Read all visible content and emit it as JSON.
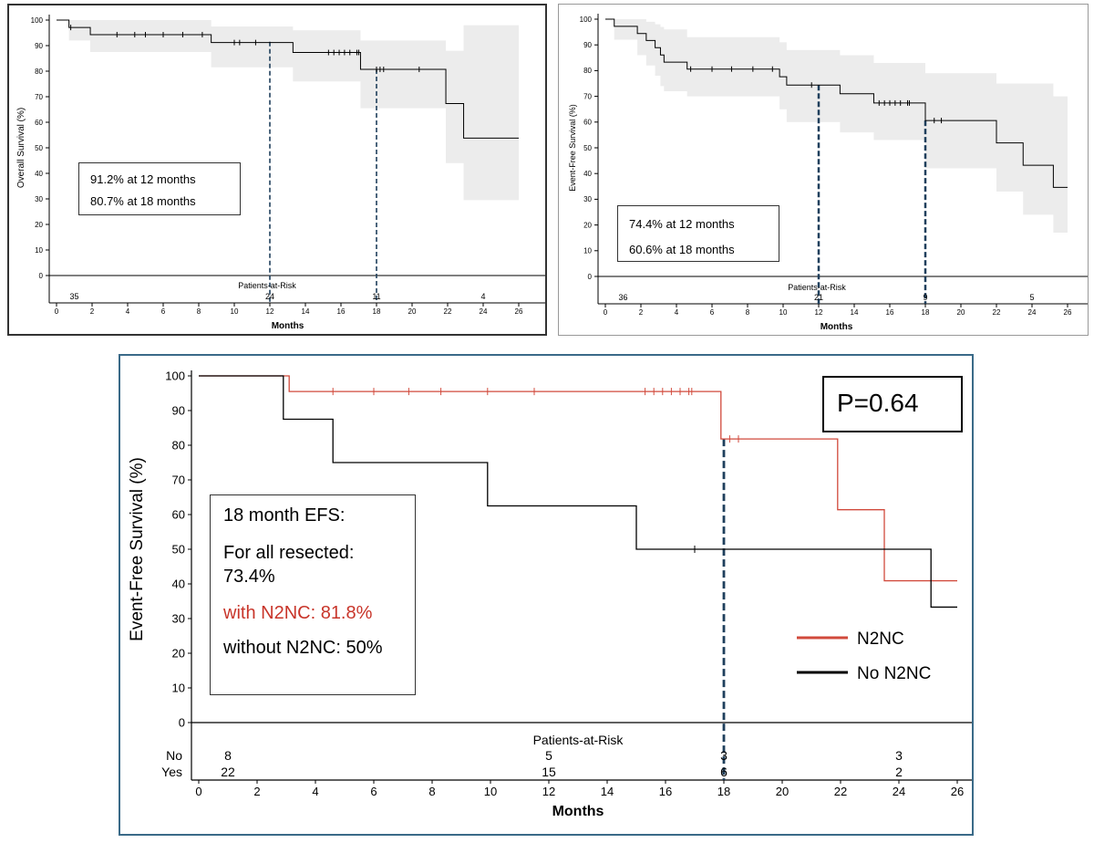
{
  "charts": [
    {
      "id": "os",
      "chart_data": {
        "type": "line",
        "ylabel": "Overall Survival (%)",
        "xlabel": "Months",
        "xlim": [
          0,
          26
        ],
        "ylim": [
          0,
          100
        ],
        "xticks": [
          0,
          2,
          4,
          6,
          8,
          10,
          12,
          14,
          16,
          18,
          20,
          22,
          24,
          26
        ],
        "yticks": [
          0,
          10,
          20,
          30,
          40,
          50,
          60,
          70,
          80,
          90,
          100
        ],
        "grid": false,
        "series": [
          {
            "color": "#000000",
            "step": [
              [
                0,
                100
              ],
              [
                0.7,
                97.1
              ],
              [
                1.9,
                94.3
              ],
              [
                8.7,
                91.2
              ],
              [
                13.3,
                87.3
              ],
              [
                17.1,
                80.7
              ],
              [
                21.9,
                67.3
              ],
              [
                22.9,
                53.8
              ],
              [
                26,
                53.8
              ]
            ],
            "censor": [
              [
                0.8,
                97.1
              ],
              [
                3.4,
                94.3
              ],
              [
                4.4,
                94.3
              ],
              [
                5.0,
                94.3
              ],
              [
                6.0,
                94.3
              ],
              [
                7.1,
                94.3
              ],
              [
                8.2,
                94.3
              ],
              [
                10.0,
                91.2
              ],
              [
                10.3,
                91.2
              ],
              [
                11.2,
                91.2
              ],
              [
                15.3,
                87.3
              ],
              [
                15.6,
                87.3
              ],
              [
                15.9,
                87.3
              ],
              [
                16.2,
                87.3
              ],
              [
                16.5,
                87.3
              ],
              [
                16.9,
                87.3
              ],
              [
                17.0,
                87.3
              ],
              [
                18.0,
                80.7
              ],
              [
                18.2,
                80.7
              ],
              [
                18.4,
                80.7
              ],
              [
                20.4,
                80.7
              ]
            ],
            "ci_band": [
              [
                0,
                100,
                100
              ],
              [
                0.7,
                100,
                92
              ],
              [
                1.9,
                100,
                87.5
              ],
              [
                8.7,
                97.5,
                81.5
              ],
              [
                13.3,
                96,
                76
              ],
              [
                17.1,
                92,
                65.5
              ],
              [
                21.9,
                88,
                44
              ],
              [
                22.9,
                98,
                29.5
              ],
              [
                26,
                98,
                29.5
              ]
            ]
          }
        ],
        "reference_lines_x": [
          12,
          18
        ],
        "annotation": [
          "91.2% at 12 months",
          "80.7% at 18 months"
        ],
        "risk_title": "Patients-at-Risk",
        "risk_rows": [
          {
            "label": "",
            "values": [
              {
                "x": 1,
                "v": "35"
              },
              {
                "x": 12,
                "v": "24"
              },
              {
                "x": 18,
                "v": "11"
              },
              {
                "x": 24,
                "v": "4"
              }
            ]
          }
        ]
      }
    },
    {
      "id": "efs",
      "chart_data": {
        "type": "line",
        "ylabel": "Event-Free Survival (%)",
        "xlabel": "Months",
        "xlim": [
          0,
          26
        ],
        "ylim": [
          0,
          100
        ],
        "xticks": [
          0,
          2,
          4,
          6,
          8,
          10,
          12,
          14,
          16,
          18,
          20,
          22,
          24,
          26
        ],
        "yticks": [
          0,
          10,
          20,
          30,
          40,
          50,
          60,
          70,
          80,
          90,
          100
        ],
        "grid": false,
        "series": [
          {
            "color": "#000000",
            "step": [
              [
                0,
                100
              ],
              [
                0.5,
                97.2
              ],
              [
                1.8,
                94.4
              ],
              [
                2.3,
                91.7
              ],
              [
                2.8,
                88.9
              ],
              [
                3.1,
                86.1
              ],
              [
                3.3,
                83.3
              ],
              [
                4.6,
                80.6
              ],
              [
                9.8,
                77.6
              ],
              [
                10.2,
                74.4
              ],
              [
                13.2,
                71.0
              ],
              [
                15.1,
                67.4
              ],
              [
                18.0,
                60.6
              ],
              [
                22.0,
                51.9
              ],
              [
                23.5,
                43.2
              ],
              [
                25.2,
                34.6
              ],
              [
                26,
                34.6
              ]
            ],
            "censor": [
              [
                4.8,
                80.6
              ],
              [
                6.0,
                80.6
              ],
              [
                7.1,
                80.6
              ],
              [
                8.3,
                80.6
              ],
              [
                9.4,
                80.6
              ],
              [
                11.6,
                74.4
              ],
              [
                15.4,
                67.4
              ],
              [
                15.7,
                67.4
              ],
              [
                16.0,
                67.4
              ],
              [
                16.3,
                67.4
              ],
              [
                16.6,
                67.4
              ],
              [
                17.0,
                67.4
              ],
              [
                17.1,
                67.4
              ],
              [
                18.5,
                60.6
              ],
              [
                18.9,
                60.6
              ]
            ],
            "ci_band": [
              [
                0,
                100,
                100
              ],
              [
                0.5,
                100,
                92
              ],
              [
                1.8,
                100,
                86
              ],
              [
                2.3,
                99,
                82
              ],
              [
                2.8,
                98,
                78
              ],
              [
                3.1,
                97,
                74
              ],
              [
                3.3,
                96,
                72
              ],
              [
                4.6,
                93,
                70
              ],
              [
                9.8,
                91,
                65
              ],
              [
                10.2,
                88,
                60
              ],
              [
                13.2,
                86,
                56
              ],
              [
                15.1,
                83,
                53
              ],
              [
                18.0,
                79,
                42
              ],
              [
                22.0,
                75,
                33
              ],
              [
                23.5,
                75,
                24
              ],
              [
                25.2,
                70,
                17
              ],
              [
                26,
                70,
                17
              ]
            ]
          }
        ],
        "reference_lines_x": [
          12,
          18
        ],
        "annotation": [
          "74.4% at 12 months",
          "60.6% at 18 months"
        ],
        "risk_title": "Patients-at-Risk",
        "risk_rows": [
          {
            "label": "",
            "values": [
              {
                "x": 1,
                "v": "36"
              },
              {
                "x": 12,
                "v": "21"
              },
              {
                "x": 18,
                "v": "9"
              },
              {
                "x": 24,
                "v": "5"
              }
            ]
          }
        ]
      }
    },
    {
      "id": "n2nc",
      "chart_data": {
        "type": "line",
        "ylabel": "Event-Free Survival  (%)",
        "xlabel": "Months",
        "xlim": [
          0,
          26
        ],
        "ylim": [
          0,
          100
        ],
        "xticks": [
          0,
          2,
          4,
          6,
          8,
          10,
          12,
          14,
          16,
          18,
          20,
          22,
          24,
          26
        ],
        "yticks": [
          0,
          10,
          20,
          30,
          40,
          50,
          60,
          70,
          80,
          90,
          100
        ],
        "grid": false,
        "legend_position": "right",
        "series": [
          {
            "name": "N2NC",
            "color": "#d14a3c",
            "step": [
              [
                0,
                100
              ],
              [
                3.1,
                95.5
              ],
              [
                17.9,
                81.8
              ],
              [
                21.9,
                61.4
              ],
              [
                23.5,
                40.9
              ],
              [
                26,
                40.9
              ]
            ],
            "censor": [
              [
                4.6,
                95.5
              ],
              [
                6.0,
                95.5
              ],
              [
                7.2,
                95.5
              ],
              [
                8.3,
                95.5
              ],
              [
                9.9,
                95.5
              ],
              [
                11.5,
                95.5
              ],
              [
                15.3,
                95.5
              ],
              [
                15.6,
                95.5
              ],
              [
                15.9,
                95.5
              ],
              [
                16.2,
                95.5
              ],
              [
                16.5,
                95.5
              ],
              [
                16.8,
                95.5
              ],
              [
                16.9,
                95.5
              ],
              [
                18.2,
                81.8
              ],
              [
                18.5,
                81.8
              ]
            ]
          },
          {
            "name": "No N2NC",
            "color": "#000000",
            "step": [
              [
                0,
                100
              ],
              [
                2.9,
                87.5
              ],
              [
                4.6,
                75.0
              ],
              [
                9.9,
                62.5
              ],
              [
                15.0,
                50.0
              ],
              [
                25.1,
                33.3
              ],
              [
                26,
                33.3
              ]
            ],
            "censor": [
              [
                17.0,
                50.0
              ]
            ]
          }
        ],
        "reference_lines_x": [
          18
        ],
        "pvalue": "P=0.64",
        "annotation": [
          "18 month EFS:",
          "For all resected:",
          "73.4%",
          "with N2NC: 81.8%",
          "without N2NC: 50%"
        ],
        "risk_title": "Patients-at-Risk",
        "risk_rows": [
          {
            "label": "No",
            "values": [
              {
                "x": 1,
                "v": "8"
              },
              {
                "x": 12,
                "v": "5"
              },
              {
                "x": 18,
                "v": "3"
              },
              {
                "x": 24,
                "v": "3"
              }
            ]
          },
          {
            "label": "Yes",
            "values": [
              {
                "x": 1,
                "v": "22"
              },
              {
                "x": 12,
                "v": "15"
              },
              {
                "x": 18,
                "v": "6"
              },
              {
                "x": 24,
                "v": "2"
              }
            ]
          }
        ]
      }
    }
  ]
}
